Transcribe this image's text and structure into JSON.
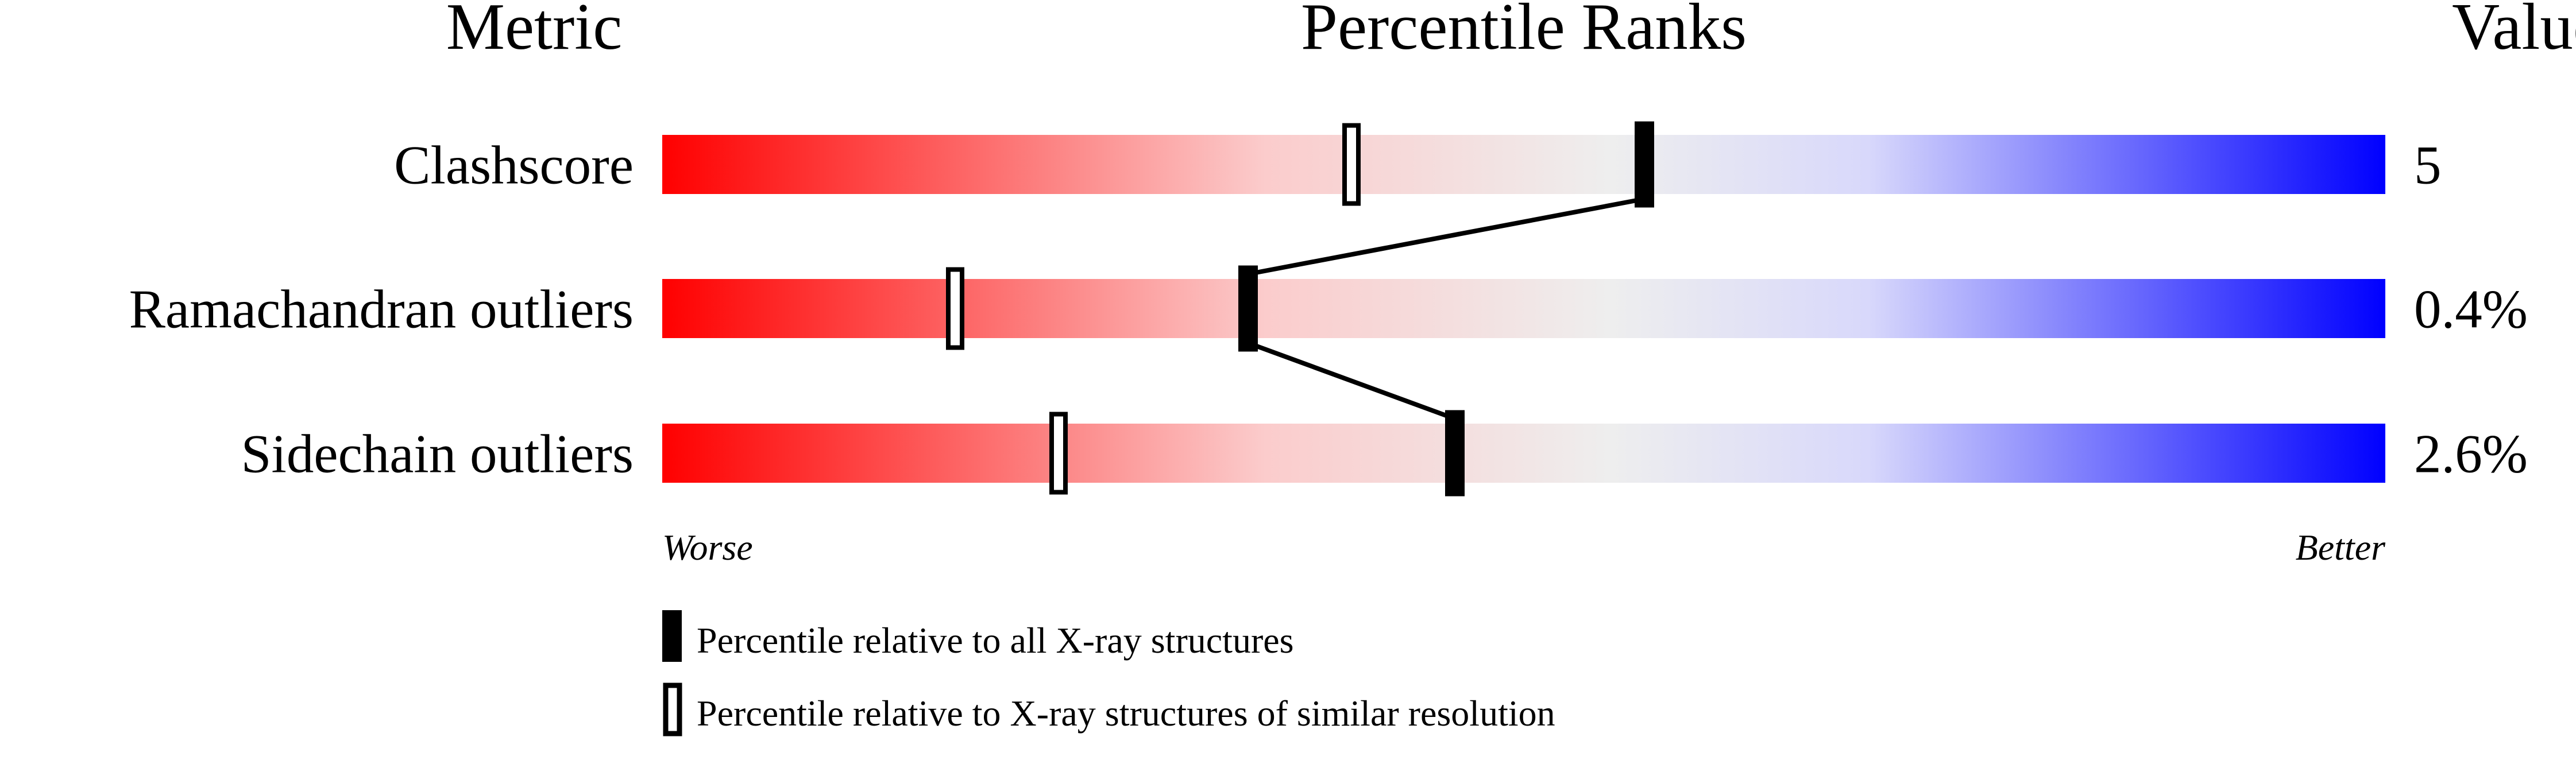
{
  "chart_data": {
    "type": "percentile-slider",
    "headers": {
      "metric": "Metric",
      "ranks": "Percentile Ranks",
      "value": "Value"
    },
    "xlim": [
      0,
      100
    ],
    "rows": [
      {
        "metric": "Clashscore",
        "value": "5",
        "percentile_all": 57,
        "percentile_similar": 40
      },
      {
        "metric": "Ramachandran outliers",
        "value": "0.4%",
        "percentile_all": 34,
        "percentile_similar": 17
      },
      {
        "metric": "Sidechain outliers",
        "value": "2.6%",
        "percentile_all": 46,
        "percentile_similar": 23
      }
    ],
    "axis_labels": {
      "left": "Worse",
      "right": "Better"
    },
    "legend": [
      {
        "marker": "filled",
        "label": "Percentile relative to all X-ray structures"
      },
      {
        "marker": "open",
        "label": "Percentile relative to X-ray structures of similar resolution"
      }
    ],
    "colors": {
      "worse": "#ff0000",
      "neutral": "#eeeeee",
      "better": "#0000ff",
      "marker": "#000000"
    }
  }
}
